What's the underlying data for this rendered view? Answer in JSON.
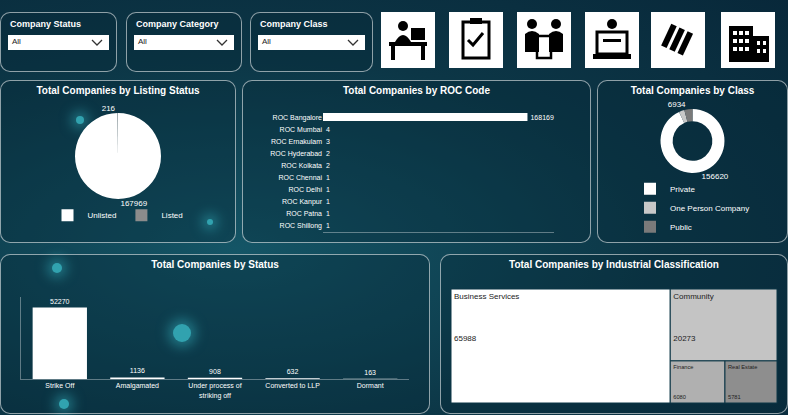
{
  "filters": [
    {
      "label": "Company Status",
      "value": "All"
    },
    {
      "label": "Company Category",
      "value": "All"
    },
    {
      "label": "Company Class",
      "value": "All"
    }
  ],
  "chart_data": [
    {
      "type": "pie",
      "title": "Total Companies by Listing Status",
      "categories": [
        "Unlisted",
        "Listed"
      ],
      "values": [
        167969,
        216
      ],
      "colors": [
        "#ffffff",
        "#8c8c8c"
      ],
      "data_labels": true,
      "legend": "bottom"
    },
    {
      "type": "bar",
      "title": "Total Companies by ROC Code",
      "orientation": "horizontal",
      "categories": [
        "ROC Bangalore",
        "ROC Mumbai",
        "ROC Ernakulam",
        "ROC Hyderabad",
        "ROC Kolkata",
        "ROC Chennai",
        "ROC Delhi",
        "ROC Kanpur",
        "ROC Patna",
        "ROC Shillong"
      ],
      "values": [
        168169,
        4,
        3,
        2,
        2,
        1,
        1,
        1,
        1,
        1
      ],
      "color": "#ffffff",
      "xlim": [
        0,
        190000
      ],
      "xticks": [],
      "data_labels": true,
      "tick_labels": "y",
      "grid": false
    },
    {
      "type": "donut",
      "title": "Total Companies by Class",
      "categories": [
        "Private",
        "One Person Company",
        "Public"
      ],
      "values": [
        156620,
        4631,
        6934
      ],
      "value_labels": [
        "156620",
        null,
        "6934"
      ],
      "colors": [
        "#ffffff",
        "#c8c8c8",
        "#7a7a7a"
      ],
      "data_labels": true,
      "legend": "bottom"
    },
    {
      "type": "bar",
      "title": "Total Companies by Status",
      "categories": [
        "Strike Off",
        "Amalgamated",
        "Under process of striking off",
        "Converted to LLP",
        "Dormant"
      ],
      "values": [
        52270,
        1136,
        908,
        632,
        163
      ],
      "color": "#ffffff",
      "ylim": [
        0,
        60000
      ],
      "yticks": [],
      "data_labels": true,
      "tick_labels": "x",
      "grid": false
    },
    {
      "type": "treemap",
      "title": "Total Companies by Industrial Classification",
      "categories": [
        "Business Services",
        "Community",
        "Finance",
        "Real Estate"
      ],
      "values": [
        65988,
        20273,
        6080,
        5781
      ],
      "colors": [
        "#ffffff",
        "#c4c4c4",
        "#b0b0b0",
        "#8e8e8e"
      ],
      "data_labels": true
    }
  ]
}
